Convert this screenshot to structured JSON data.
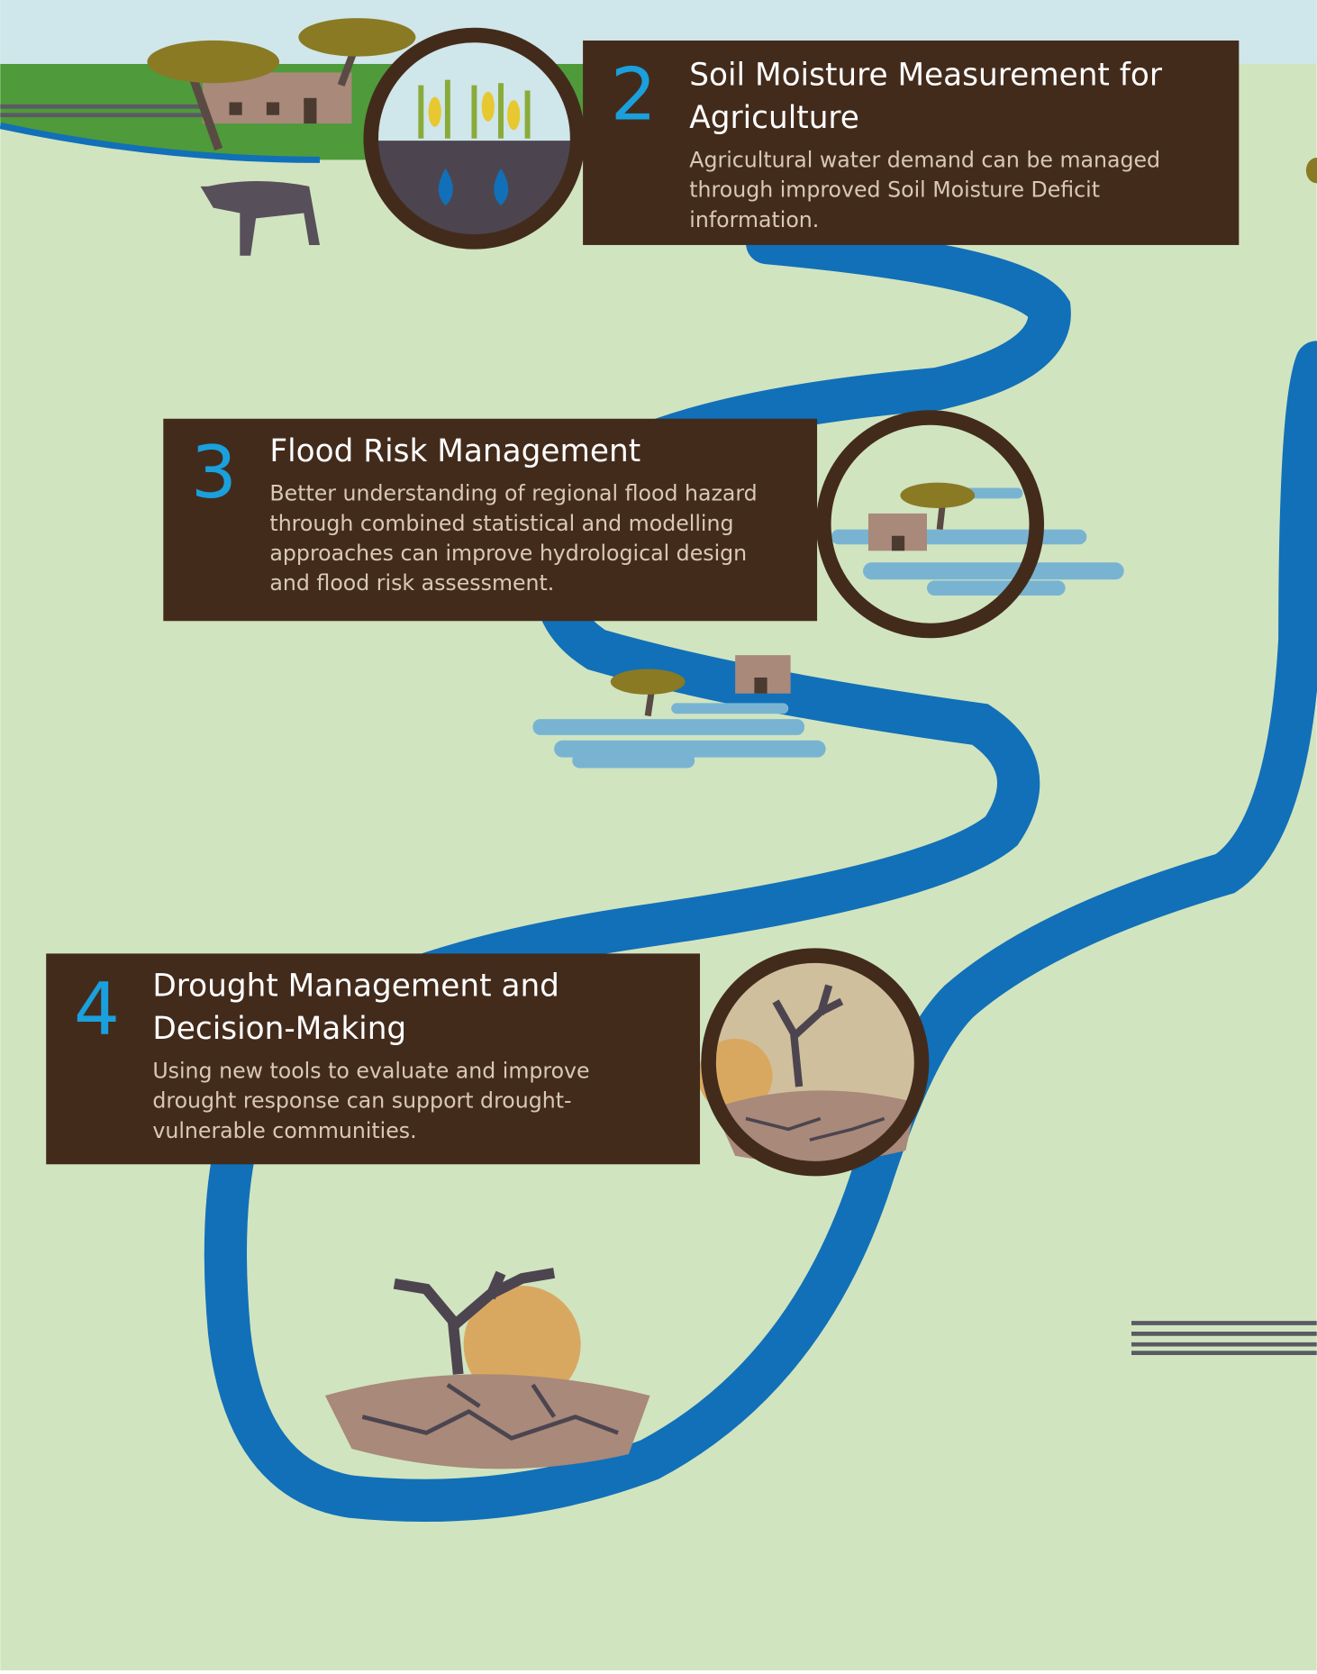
{
  "items": [
    {
      "number": "2",
      "title": "Soil Moisture Measurement for Agriculture",
      "description": "Agricultural water demand can be managed through improved Soil Moisture Deficit information."
    },
    {
      "number": "3",
      "title": "Flood Risk Management",
      "description": "Better understanding of regional flood hazard through combined statistical and modelling approaches can improve hydrological design and flood risk assessment."
    },
    {
      "number": "4",
      "title": "Drought Management and Decision-Making",
      "description": "Using new tools to evaluate and improve drought response can support drought-vulnerable communities."
    }
  ]
}
